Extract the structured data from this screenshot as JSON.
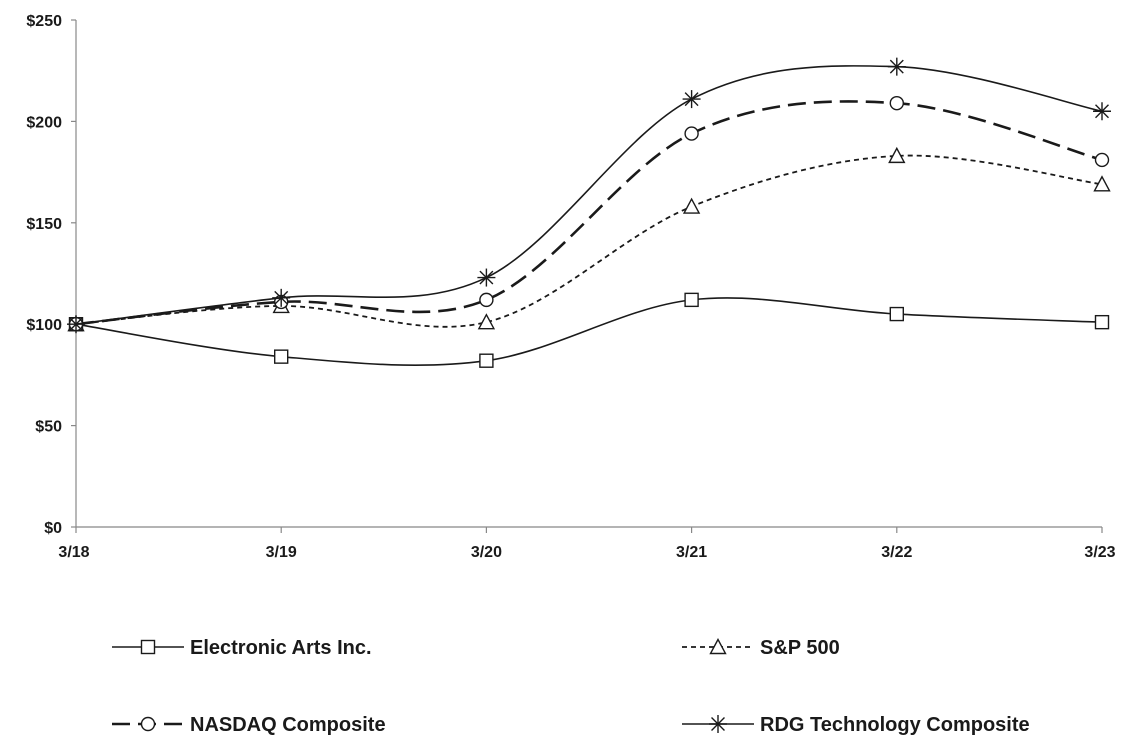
{
  "chart_data": {
    "type": "line",
    "title": "",
    "xlabel": "",
    "ylabel": "",
    "categories": [
      "3/18",
      "3/19",
      "3/20",
      "3/21",
      "3/22",
      "3/23"
    ],
    "y_ticks": [
      "$0",
      "$50",
      "$100",
      "$150",
      "$200",
      "$250"
    ],
    "ylim": [
      0,
      250
    ],
    "grid": false,
    "legend_position": "bottom",
    "series": [
      {
        "name": "Electronic Arts Inc.",
        "values": [
          100,
          84,
          82,
          112,
          105,
          101
        ],
        "marker": "square",
        "dash": "solid",
        "color": "#1a1a1a"
      },
      {
        "name": "S&P 500",
        "values": [
          100,
          109,
          101,
          158,
          183,
          169
        ],
        "marker": "triangle",
        "dash": "dotted",
        "color": "#1a1a1a"
      },
      {
        "name": "NASDAQ Composite",
        "values": [
          100,
          111,
          112,
          194,
          209,
          181
        ],
        "marker": "circle",
        "dash": "dashed",
        "color": "#1a1a1a"
      },
      {
        "name": "RDG Technology Composite",
        "values": [
          100,
          113,
          123,
          211,
          227,
          205
        ],
        "marker": "asterisk",
        "dash": "solid",
        "color": "#1a1a1a"
      }
    ]
  }
}
